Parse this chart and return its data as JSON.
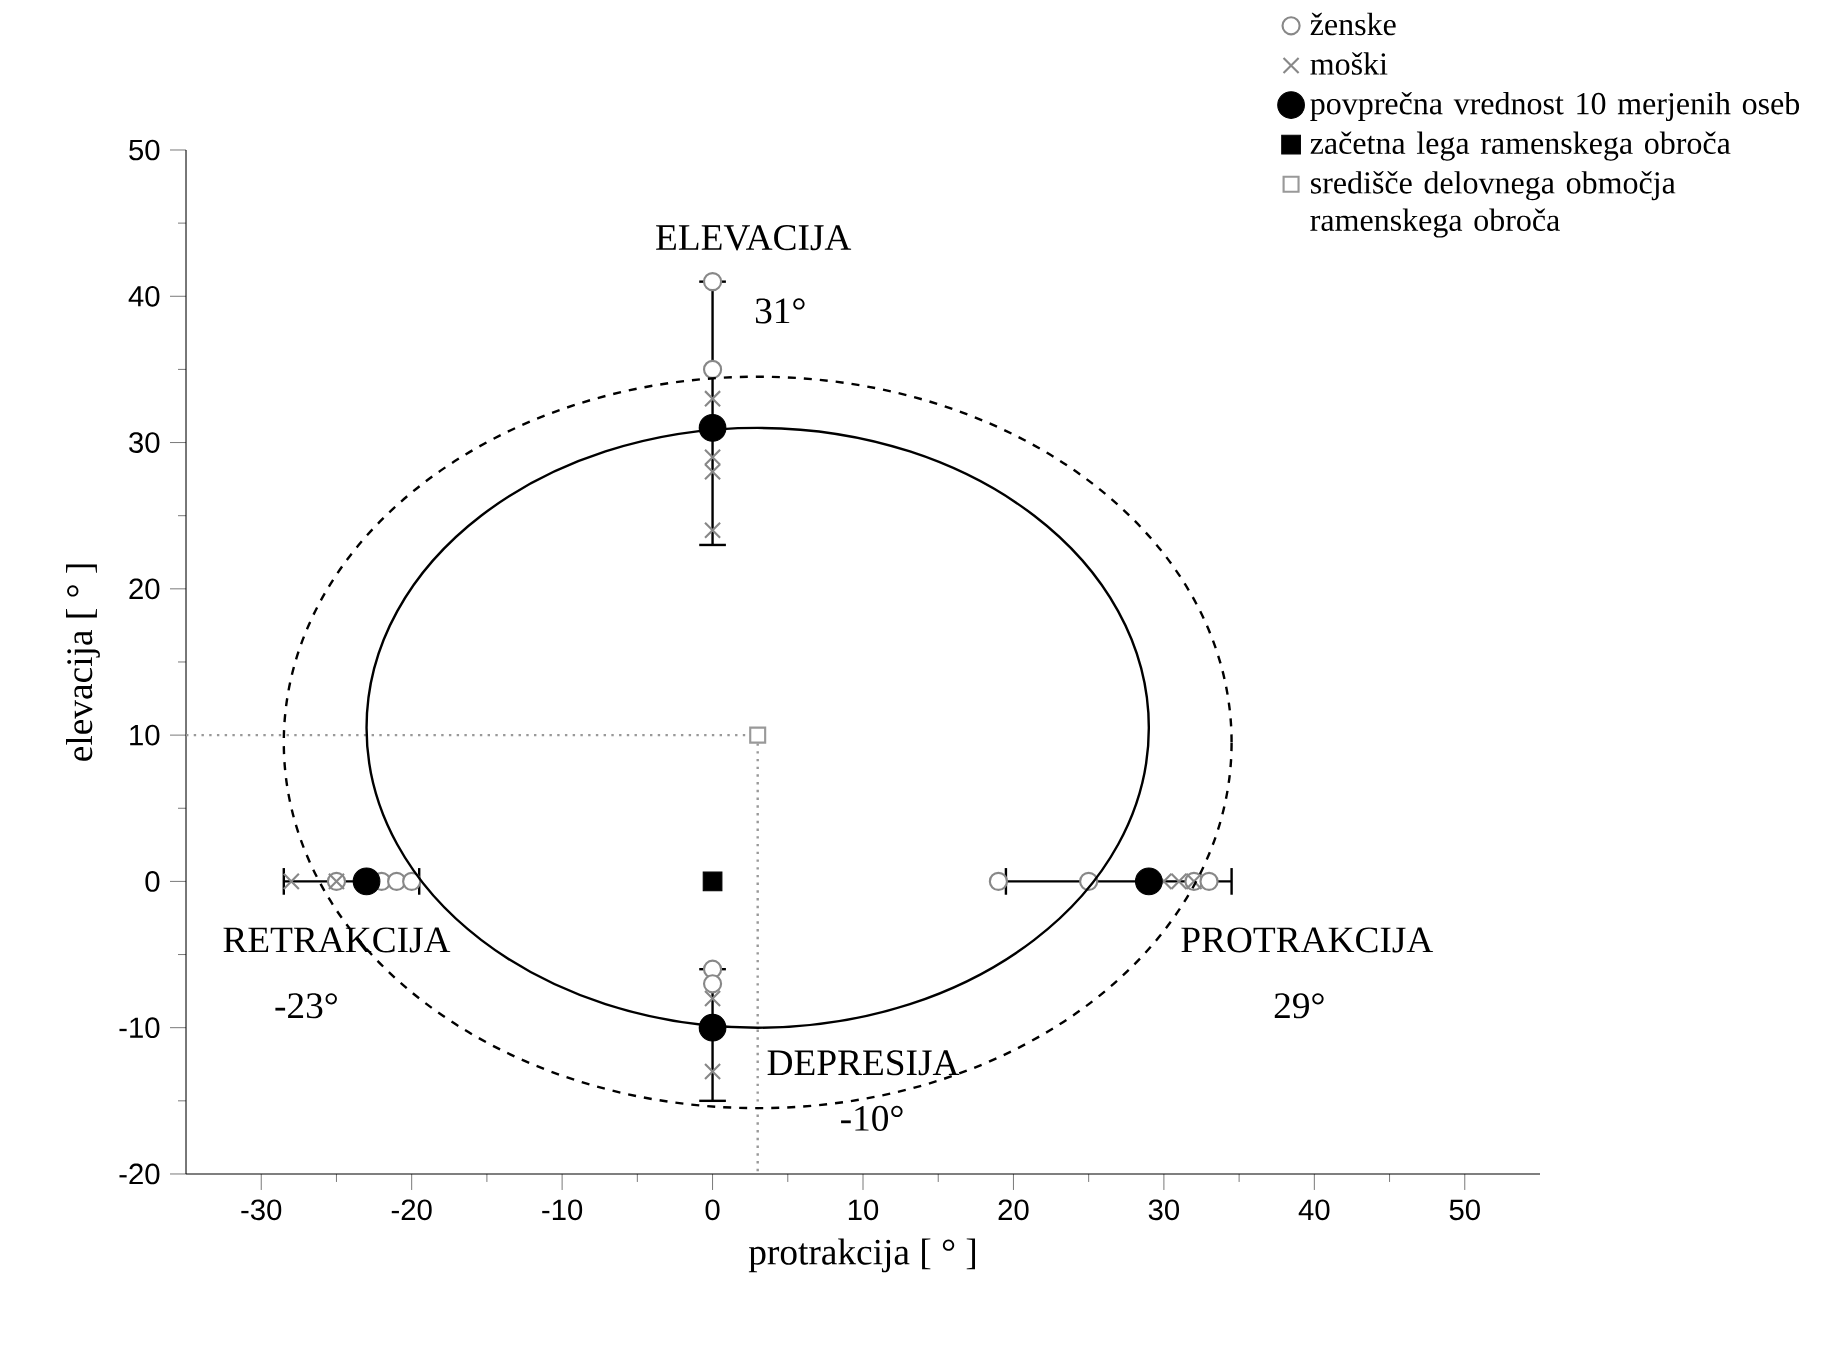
{
  "chart_data": {
    "type": "scatter",
    "xlabel": "protrakcija [ ° ]",
    "ylabel": "elevacija [ ° ]",
    "xlim": [
      -35,
      55
    ],
    "ylim": [
      -20,
      50
    ],
    "xticks": [
      -30,
      -20,
      -10,
      0,
      10,
      20,
      30,
      40,
      50
    ],
    "yticks": [
      -20,
      -10,
      0,
      10,
      20,
      30,
      40,
      50
    ],
    "grid": false,
    "legend": "top right",
    "series": [
      {
        "type": "line",
        "color": "#999999",
        "line_style": "dotted",
        "marker": "none",
        "x": [
          -35,
          3,
          3
        ],
        "values": [
          10,
          10,
          -20
        ]
      },
      {
        "name": "ženske",
        "color": "#888888",
        "marker": "circle",
        "x": [
          0,
          0,
          0,
          0,
          -25,
          -22,
          -21,
          -20,
          19,
          25,
          32,
          33
        ],
        "values": [
          41,
          35,
          -6,
          -7,
          0,
          0,
          0,
          0,
          0,
          0,
          0,
          0
        ]
      },
      {
        "name": "moški",
        "color": "#888888",
        "marker": "cross",
        "x": [
          0,
          0,
          0,
          0,
          0,
          0,
          -28,
          -25,
          30,
          31,
          32
        ],
        "values": [
          33,
          29,
          28,
          24,
          -8,
          -13,
          0,
          0,
          0,
          0,
          0
        ]
      },
      {
        "name": "povprečna vrednost 10 merjenih oseb",
        "color": "#000000",
        "marker": "circle",
        "x": [
          0,
          -23,
          29,
          0
        ],
        "values": [
          31,
          0,
          0,
          -10
        ],
        "errors": [
          [
            23,
            41
          ],
          null,
          null,
          [
            -15,
            -6
          ]
        ],
        "xerrors": [
          null,
          [
            -28.5,
            -19.5
          ],
          [
            19.5,
            34.5
          ],
          null
        ]
      },
      {
        "name": "začetna lega ramenskega obroča",
        "color": "#000000",
        "marker": "square",
        "x": [
          0
        ],
        "values": [
          0
        ]
      },
      {
        "name": "središče delovnega območja ramenskega obroča",
        "color": "#999999",
        "marker": "square",
        "x": [
          3
        ],
        "values": [
          10
        ]
      }
    ],
    "annotations": [
      "ELEVACIJA",
      "31°",
      "RETRAKCIJA",
      "-23°",
      "PROTRAKCIJA",
      "29°",
      "DEPRESIJA",
      "-10°"
    ]
  }
}
